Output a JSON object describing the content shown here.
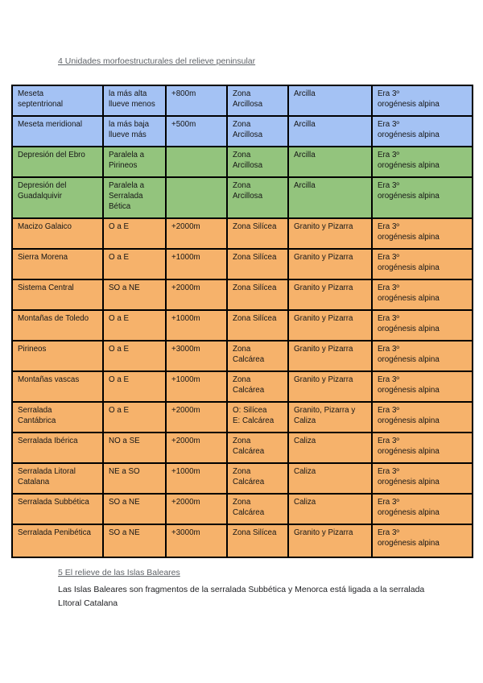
{
  "page": {
    "section4_heading": "4 Unidades morfoestructurales del relieve peninsular",
    "section5_heading": "5 El relieve de las Islas Baleares",
    "section5_paragraph": "Las Islas Baleares son fragmentos de la serralada Subbética y Menorca está ligada a la serralada LItoral Catalana"
  },
  "colors": {
    "meseta_blue": "#a4c2f4",
    "depresion_green": "#93c47d",
    "cordillera_orange": "#f6b26b",
    "table_border": "#000000"
  },
  "table": {
    "rows": [
      {
        "color": "blue",
        "cells": [
          "Meseta\nseptentrional",
          "la más alta\nllueve menos",
          "+800m",
          "Zona\nArcillosa",
          "Arcilla",
          "Era 3º\norogénesis alpina"
        ]
      },
      {
        "color": "blue",
        "cells": [
          "Meseta meridional",
          "la más baja\nllueve más",
          "+500m",
          "Zona\nArcillosa",
          "Arcilla",
          "Era 3º\norogénesis alpina"
        ]
      },
      {
        "color": "green",
        "cells": [
          "Depresión del Ebro",
          "Paralela a\nPirineos",
          "",
          "Zona\nArcillosa",
          "Arcilla",
          "Era 3º\norogénesis alpina"
        ]
      },
      {
        "color": "green",
        "cells": [
          "Depresión del\nGuadalquivir",
          "Paralela a\nSerralada\nBética",
          "",
          "Zona\nArcillosa",
          "Arcilla",
          "Era 3º\norogénesis alpina"
        ]
      },
      {
        "color": "orange",
        "cells": [
          "Macizo Galaico",
          "O a E",
          "+2000m",
          "Zona Silícea",
          "Granito y Pizarra",
          "Era 3º\norogénesis alpina"
        ]
      },
      {
        "color": "orange",
        "cells": [
          "Sierra Morena",
          "O a E",
          "+1000m",
          "Zona Silícea",
          "Granito y Pizarra",
          "Era 3º\norogénesis alpina"
        ]
      },
      {
        "color": "orange",
        "cells": [
          "Sistema Central",
          "SO a NE",
          "+2000m",
          "Zona Silícea",
          "Granito y Pizarra",
          "Era 3º\norogénesis alpina"
        ]
      },
      {
        "color": "orange",
        "cells": [
          "Montañas de Toledo",
          "O a E",
          "+1000m",
          "Zona Silícea",
          "Granito y Pizarra",
          "Era 3º\norogénesis alpina"
        ]
      },
      {
        "color": "orange",
        "cells": [
          "Pirineos",
          "O a E",
          "+3000m",
          "Zona\nCalcárea",
          "Granito y Pizarra",
          "Era 3º\norogénesis alpina"
        ]
      },
      {
        "color": "orange",
        "cells": [
          "Montañas vascas",
          "O a E",
          "+1000m",
          "Zona\nCalcárea",
          "Granito y Pizarra",
          "Era 3º\norogénesis alpina"
        ]
      },
      {
        "color": "orange",
        "cells": [
          "Serralada\nCantábrica",
          "O a E",
          "+2000m",
          "O: Silícea\nE: Calcárea",
          "Granito, Pizarra y\nCaliza",
          "Era 3º\norogénesis alpina"
        ]
      },
      {
        "color": "orange",
        "cells": [
          "Serralada Ibérica",
          "NO a SE",
          "+2000m",
          "Zona\nCalcárea",
          "Caliza",
          "Era 3º\norogénesis alpina"
        ]
      },
      {
        "color": "orange",
        "cells": [
          "Serralada Litoral\nCatalana",
          "NE a SO",
          "+1000m",
          "Zona\nCalcárea",
          "Caliza",
          "Era 3º\norogénesis alpina"
        ]
      },
      {
        "color": "orange",
        "cells": [
          "Serralada Subbética",
          "SO a NE",
          "+2000m",
          "Zona\nCalcárea",
          "Caliza",
          "Era 3º\norogénesis alpina"
        ]
      },
      {
        "color": "orange",
        "cells": [
          "Serralada Penibética",
          "SO a NE",
          "+3000m",
          "Zona Silícea",
          "Granito y Pizarra",
          "Era 3º\norogénesis alpina"
        ]
      }
    ]
  }
}
